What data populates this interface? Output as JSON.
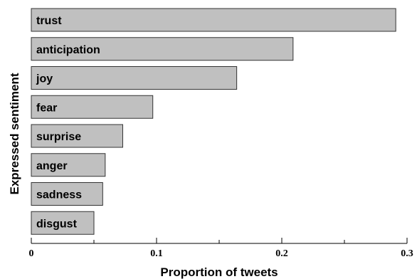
{
  "chart_data": {
    "type": "bar",
    "orientation": "horizontal",
    "categories": [
      "trust",
      "anticipation",
      "joy",
      "fear",
      "surprise",
      "anger",
      "sadness",
      "disgust"
    ],
    "values": [
      0.291,
      0.209,
      0.164,
      0.097,
      0.073,
      0.059,
      0.057,
      0.05
    ],
    "xlabel": "Proportion of tweets",
    "ylabel": "Expressed sentiment",
    "xlim": [
      0,
      0.3
    ],
    "xticks": [
      0,
      0.1,
      0.2,
      0.3
    ],
    "xtick_labels": [
      "0",
      "0.1",
      "0.2",
      "0.3"
    ],
    "grid": false,
    "bar_color": "#c0c0c0"
  }
}
